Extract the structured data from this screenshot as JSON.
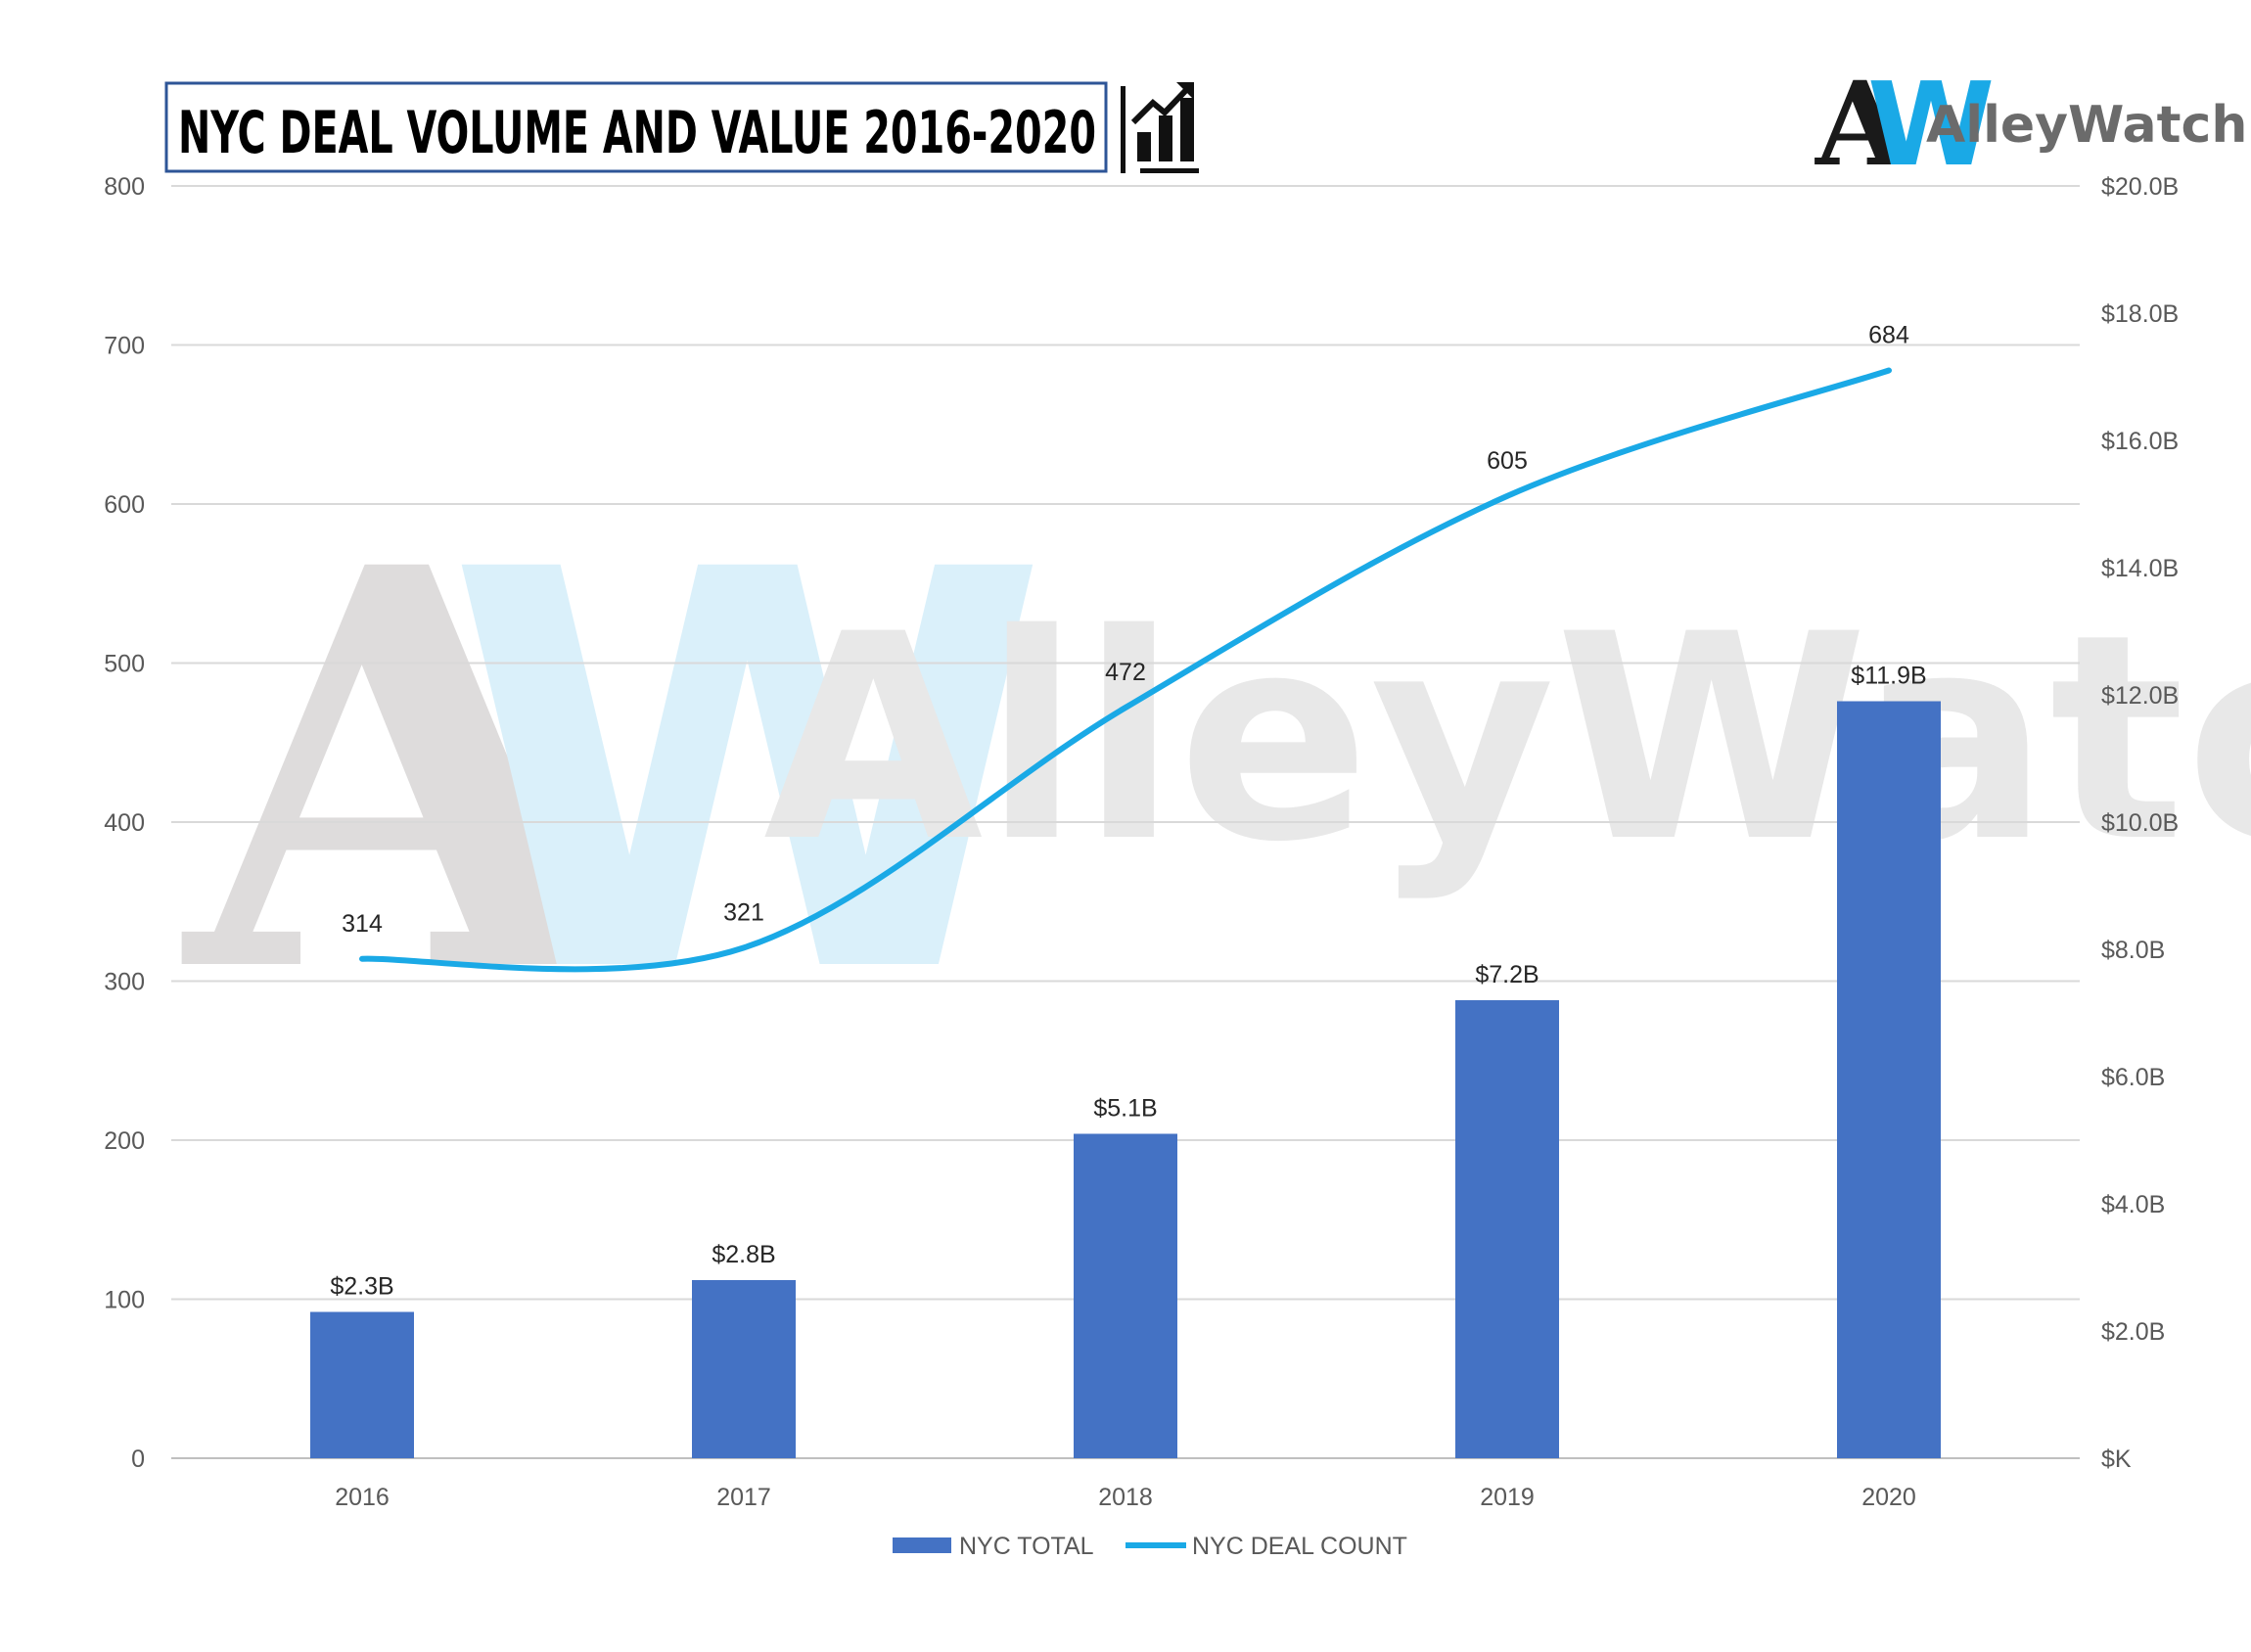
{
  "header": {
    "title": "NYC DEAL VOLUME AND VALUE 2016-2020",
    "icon": "growth-chart-icon",
    "brand_logo_letters": "AW",
    "brand_name": "AlleyWatch"
  },
  "watermark": {
    "logo_letters": "AW",
    "brand_name": "AlleyWatch"
  },
  "colors": {
    "bar": "#4472c4",
    "line": "#1aa9e6",
    "grid": "#d9d9d9",
    "logo_dark": "#1a1a1a",
    "logo_blue": "#1aa9e6",
    "brand_gray": "#6b6b6b"
  },
  "chart_data": {
    "type": "bar",
    "categories": [
      "2016",
      "2017",
      "2018",
      "2019",
      "2020"
    ],
    "series": [
      {
        "name": "NYC TOTAL",
        "type": "bar",
        "axis": "right",
        "values": [
          2.3,
          2.8,
          5.1,
          7.2,
          11.9
        ],
        "labels": [
          "$2.3B",
          "$2.8B",
          "$5.1B",
          "$7.2B",
          "$11.9B"
        ]
      },
      {
        "name": "NYC DEAL COUNT",
        "type": "line",
        "axis": "left",
        "values": [
          314,
          321,
          472,
          605,
          684
        ],
        "labels": [
          "314",
          "321",
          "472",
          "605",
          "684"
        ]
      }
    ],
    "title": "NYC DEAL VOLUME AND VALUE 2016-2020",
    "y_left": {
      "min": 0,
      "max": 800,
      "ticks": [
        "0",
        "100",
        "200",
        "300",
        "400",
        "500",
        "600",
        "700",
        "800"
      ]
    },
    "y_right": {
      "min": 0,
      "max": 20,
      "ticks": [
        "$K",
        "$2.0B",
        "$4.0B",
        "$6.0B",
        "$8.0B",
        "$10.0B",
        "$12.0B",
        "$14.0B",
        "$16.0B",
        "$18.0B",
        "$20.0B"
      ]
    },
    "grid": true,
    "legend": "bottom"
  }
}
